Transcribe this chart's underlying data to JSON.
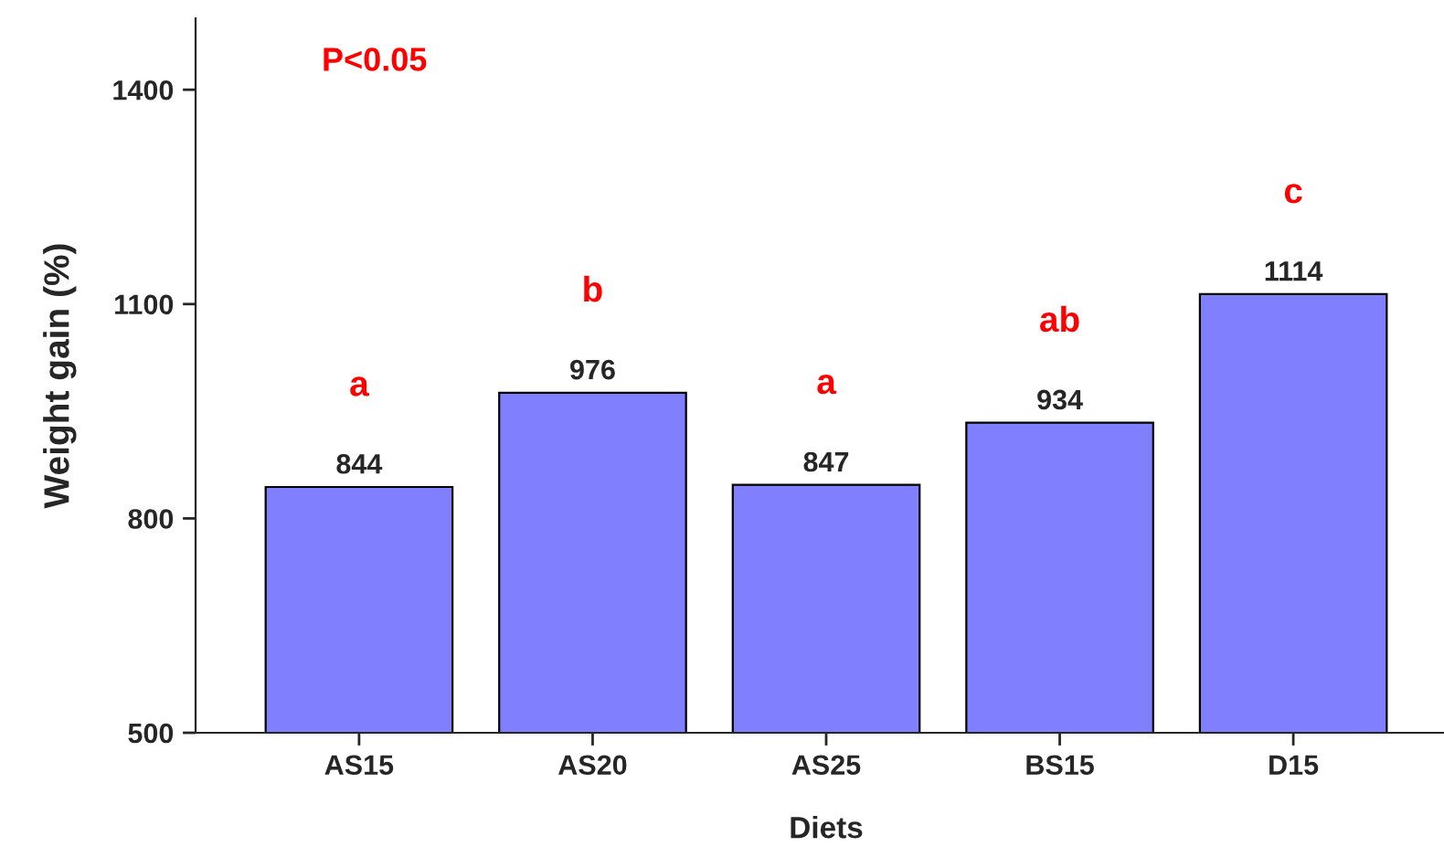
{
  "chart_data": {
    "type": "bar",
    "xlabel": "Diets",
    "ylabel": "Weight gain (%)",
    "categories": [
      "AS15",
      "AS20",
      "AS25",
      "BS15",
      "D15"
    ],
    "values": [
      844,
      976,
      847,
      934,
      1114
    ],
    "color": "#8080ff",
    "ylim": [
      500,
      1500
    ],
    "yticks": [
      500,
      800,
      1100,
      1400
    ],
    "data_labels": true,
    "grid": false,
    "legend": false,
    "annotations": [
      "P<0.05",
      "a",
      "b",
      "a",
      "ab",
      "c"
    ]
  }
}
